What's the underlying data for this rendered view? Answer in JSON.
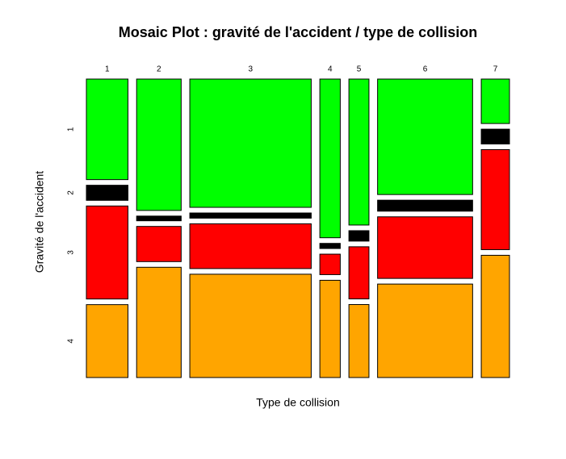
{
  "chart_data": {
    "type": "mosaic",
    "title": "Mosaic Plot : gravité de l'accident / type de collision",
    "x_label": "Type de collision",
    "y_label": "Gravité de l'accident",
    "categories": [
      "1",
      "2",
      "3",
      "4",
      "5",
      "6",
      "7"
    ],
    "series": [
      {
        "name": "1",
        "color": "#00ff00",
        "values": [
          4.0,
          5.6,
          14.9,
          3.1,
          2.8,
          10.5,
          1.2
        ]
      },
      {
        "name": "2",
        "color": "#000000",
        "values": [
          0.6,
          0.2,
          0.6,
          0.1,
          0.2,
          1.0,
          0.4
        ]
      },
      {
        "name": "3",
        "color": "#ff0000",
        "values": [
          3.7,
          1.5,
          5.2,
          0.4,
          1.0,
          5.6,
          2.7
        ]
      },
      {
        "name": "4",
        "color": "#ffa500",
        "values": [
          2.9,
          4.7,
          12.0,
          1.9,
          1.4,
          8.5,
          3.3
        ]
      }
    ]
  }
}
